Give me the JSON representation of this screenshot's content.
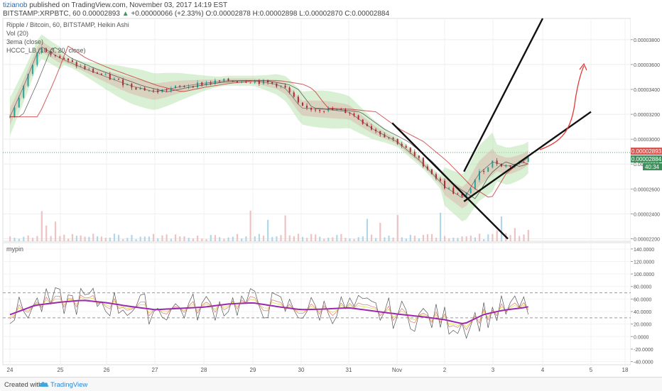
{
  "header": {
    "user": "tizianob",
    "published": "published on TradingView.com, November 03, 2017 14:19 EST",
    "symbol": "BITSTAMP:XRPBTC, 60",
    "last": "0.00002893",
    "change": "+0.00000066 (+2.33%)",
    "ohlc": "O:0.00002878 H:0.00002898 L:0.00002870 C:0.00002884"
  },
  "legend": {
    "line1": "Ripple / Bitcoin, 60, BITSTAMP, Heikin Ashi",
    "line2": "Vol (20)",
    "line3": "3ema (close)",
    "line4": "HCCC_LB (10, 3, 20, close)",
    "osc": "mypin"
  },
  "badges": {
    "price1": "0.00002893",
    "price2": "0.00002884",
    "time": "40:34"
  },
  "footer": {
    "created": "Created with",
    "brand": "TradingView"
  },
  "colors": {
    "up": "#26a69a",
    "down": "#b22833",
    "band": "#b9e3b3",
    "ema": "#c62828",
    "osc_main": "#9c27b0",
    "arrow": "#e53935",
    "trend": "#111111"
  },
  "chart_data": [
    {
      "type": "candlestick",
      "title": "Ripple / Bitcoin, 60, BITSTAMP, Heikin Ashi",
      "x_ticks": [
        "24",
        "25",
        "26",
        "27",
        "28",
        "29",
        "30",
        "31",
        "Nov",
        "2",
        "3",
        "4",
        "5",
        "18"
      ],
      "y_ticks": [
        "0.00003800",
        "0.00003600",
        "0.00003400",
        "0.00003200",
        "0.00003000",
        "0.00002800",
        "0.00002600",
        "0.00002400",
        "0.00002200"
      ],
      "ylim": [
        2.18e-05,
        3.97e-05
      ],
      "price_path": [
        {
          "day": 24.0,
          "price": 3.18e-05
        },
        {
          "day": 24.3,
          "price": 3.45e-05
        },
        {
          "day": 24.6,
          "price": 3.75e-05
        },
        {
          "day": 24.8,
          "price": 3.7e-05
        },
        {
          "day": 25.0,
          "price": 3.65e-05
        },
        {
          "day": 25.5,
          "price": 3.57e-05
        },
        {
          "day": 26.0,
          "price": 3.5e-05
        },
        {
          "day": 26.5,
          "price": 3.43e-05
        },
        {
          "day": 27.0,
          "price": 3.38e-05
        },
        {
          "day": 27.5,
          "price": 3.42e-05
        },
        {
          "day": 28.0,
          "price": 3.45e-05
        },
        {
          "day": 28.5,
          "price": 3.47e-05
        },
        {
          "day": 29.0,
          "price": 3.47e-05
        },
        {
          "day": 29.5,
          "price": 3.44e-05
        },
        {
          "day": 29.7,
          "price": 3.4e-05
        },
        {
          "day": 30.0,
          "price": 3.25e-05
        },
        {
          "day": 30.5,
          "price": 3.24e-05
        },
        {
          "day": 31.0,
          "price": 3.22e-05
        },
        {
          "day": 31.5,
          "price": 3.08e-05
        },
        {
          "day": 32.0,
          "price": 2.98e-05
        },
        {
          "day": 32.5,
          "price": 2.82e-05
        },
        {
          "day": 33.0,
          "price": 2.62e-05
        },
        {
          "day": 33.4,
          "price": 2.52e-05
        },
        {
          "day": 33.7,
          "price": 2.72e-05
        },
        {
          "day": 34.0,
          "price": 2.82e-05
        },
        {
          "day": 34.3,
          "price": 2.78e-05
        },
        {
          "day": 34.6,
          "price": 2.82e-05
        },
        {
          "day": 34.8,
          "price": 2.88e-05
        }
      ],
      "last_price": 2.893e-05,
      "trend_lines": [
        {
          "from": {
            "day": 31.9,
            "price": 3.13e-05
          },
          "to": {
            "day": 34.3,
            "price": 2.2e-05
          }
        },
        {
          "from": {
            "day": 33.4,
            "price": 2.5e-05
          },
          "to": {
            "day": 36.0,
            "price": 3.22e-05
          }
        },
        {
          "from": {
            "day": 33.4,
            "price": 2.74e-05
          },
          "to": {
            "day": 35.0,
            "price": 3.97e-05
          }
        }
      ]
    },
    {
      "type": "line",
      "title": "mypin",
      "y_ticks": [
        "140.0000",
        "120.0000",
        "100.0000",
        "80.0000",
        "60.0000",
        "40.0000",
        "20.0000",
        "0.0000",
        "-20.0000",
        "-40.0000"
      ],
      "ylim": [
        -45,
        150
      ],
      "levels": [
        70,
        30
      ],
      "series": [
        {
          "values_at_days": [
            [
              24,
              35
            ],
            [
              24.5,
              50
            ],
            [
              25,
              55
            ],
            [
              25.5,
              58
            ],
            [
              26,
              54
            ],
            [
              26.5,
              48
            ],
            [
              27,
              43
            ],
            [
              27.5,
              45
            ],
            [
              28,
              47
            ],
            [
              28.5,
              52
            ],
            [
              29,
              54
            ],
            [
              29.5,
              48
            ],
            [
              30,
              43
            ],
            [
              30.5,
              44
            ],
            [
              31,
              46
            ],
            [
              31.5,
              41
            ],
            [
              32,
              36
            ],
            [
              32.5,
              32
            ],
            [
              33,
              27
            ],
            [
              33.4,
              20
            ],
            [
              33.8,
              35
            ],
            [
              34.2,
              42
            ],
            [
              34.6,
              46
            ],
            [
              34.8,
              49
            ]
          ]
        }
      ]
    }
  ]
}
